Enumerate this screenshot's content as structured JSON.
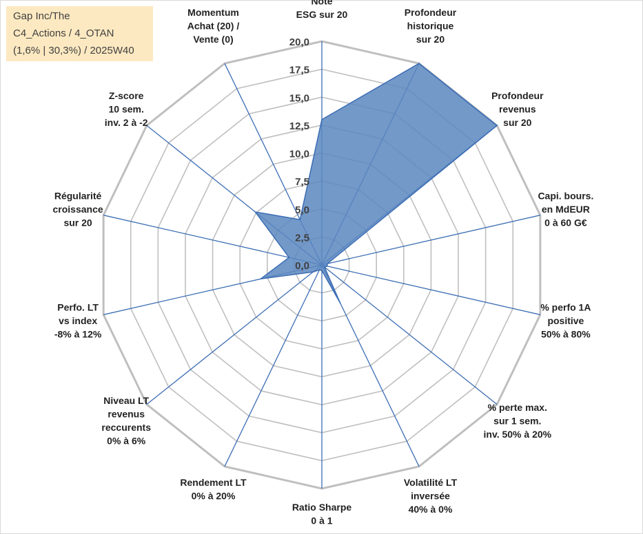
{
  "info_box": {
    "line1": "Gap Inc/The",
    "line2": "C4_Actions / 4_OTAN",
    "line3": "(1,6% | 30,3%) / 2025W40"
  },
  "chart_data": {
    "type": "radar",
    "title": "",
    "rmax": 20,
    "ticks": [
      "0,0",
      "2,5",
      "5,0",
      "7,5",
      "10,0",
      "12,5",
      "15,0",
      "17,5",
      "20,0"
    ],
    "grid": true,
    "colors": {
      "fill": "#5b87bf",
      "line": "#3c6db4",
      "grid": "#bfbfbf",
      "axis": "#3c6db4"
    },
    "axes": [
      [
        "Note",
        "ESG sur 20"
      ],
      [
        "Profondeur",
        "historique",
        "sur 20"
      ],
      [
        "Profondeur",
        "revenus",
        "sur 20"
      ],
      [
        "Capi. bours.",
        "en MdEUR",
        "0 à 60 G€"
      ],
      [
        "% perfo 1A",
        "positive",
        "50% à 80%"
      ],
      [
        "% perte max.",
        "sur 1 sem.",
        "inv. 50% à 20%"
      ],
      [
        "Volatilité LT",
        "inversée",
        "40% à 0%"
      ],
      [
        "Ratio Sharpe",
        "0 à 1"
      ],
      [
        "Rendement LT",
        "0% à 20%"
      ],
      [
        "Niveau LT",
        "revenus",
        "reccurents",
        "0% à 6%"
      ],
      [
        "Perfo. LT",
        "vs index",
        "-8% à 12%"
      ],
      [
        "Régularité",
        "croissance",
        "sur 20"
      ],
      [
        "Z-score",
        "10 sem.",
        "inv. 2 à -2"
      ],
      [
        "Momentum",
        "Achat (20) /",
        "Vente (0)"
      ]
    ],
    "series": [
      {
        "values": [
          13.0,
          20.0,
          20.0,
          0.5,
          0.5,
          0.3,
          3.8,
          0.5,
          0.5,
          1.0,
          5.6,
          3.0,
          7.6,
          4.5
        ]
      }
    ]
  }
}
